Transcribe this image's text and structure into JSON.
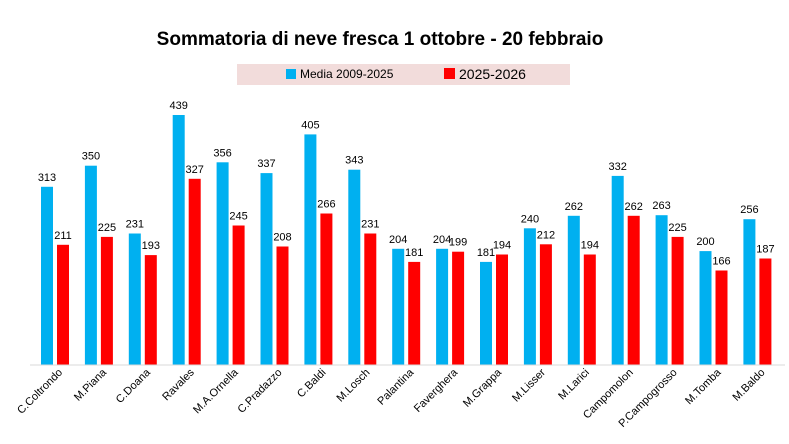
{
  "chart_data": {
    "type": "bar",
    "title": "Sommatoria di neve fresca 1 ottobre -  20 febbraio",
    "xlabel": "",
    "ylabel": "",
    "ylim": [
      0,
      450
    ],
    "grid": false,
    "legend_position": "top-center",
    "categories": [
      "C.Coltrondo",
      "M.Piana",
      "C.Doana",
      "Ravales",
      "M.A.Ornella",
      "C.Pradazzo",
      "C.Baldi",
      "M.Losch",
      "Palantina",
      "Faverghera",
      "M.Grappa",
      "M.Lisser",
      "M.Larici",
      "Campomolon",
      "P.Campogrosso",
      "M.Tomba",
      "M.Baldo"
    ],
    "series": [
      {
        "name": "Media 2009-2025",
        "color": "#00B0F0",
        "values": [
          313,
          350,
          231,
          439,
          356,
          337,
          405,
          343,
          204,
          204,
          181,
          240,
          262,
          332,
          263,
          200,
          256
        ]
      },
      {
        "name": "2025-2026",
        "color": "#FF0000",
        "values": [
          211,
          225,
          193,
          327,
          245,
          208,
          266,
          231,
          181,
          199,
          194,
          212,
          194,
          262,
          225,
          166,
          187
        ]
      }
    ],
    "legend_background": "#F2DCDB"
  }
}
